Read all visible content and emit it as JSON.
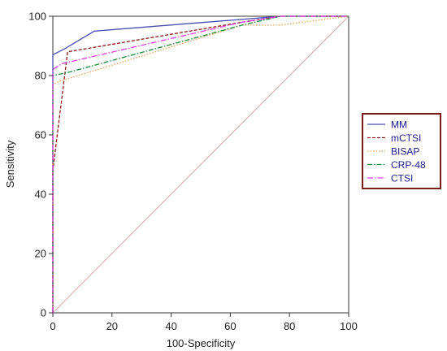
{
  "chart_data": {
    "type": "line",
    "xlabel": "100-Specificity",
    "ylabel": "Sensitivity",
    "xlim": [
      0,
      100
    ],
    "ylim": [
      0,
      100
    ],
    "xticks": [
      "0",
      "20",
      "40",
      "60",
      "80",
      "100"
    ],
    "yticks": [
      "0",
      "20",
      "40",
      "60",
      "80",
      "100"
    ],
    "legend_position": "right",
    "grid": false,
    "reference_line": {
      "x": [
        0,
        100
      ],
      "y": [
        0,
        100
      ],
      "color": "#d4a6a6"
    },
    "series": [
      {
        "name": "MM",
        "color": "#4a4fb0",
        "dash": "",
        "x": [
          0,
          0,
          4,
          14,
          77,
          100
        ],
        "y": [
          0,
          87,
          89,
          95,
          100,
          100
        ]
      },
      {
        "name": "mCTSI",
        "color": "#8b1a1a",
        "dash": "4,2",
        "x": [
          0,
          0,
          5,
          64,
          77,
          100
        ],
        "y": [
          0,
          48,
          88,
          98,
          100,
          100
        ]
      },
      {
        "name": "BISAP",
        "color": "#f0a050",
        "dash": "1.5,2",
        "x": [
          0,
          0,
          2,
          64,
          77,
          100
        ],
        "y": [
          0,
          77,
          78,
          97,
          97,
          100
        ]
      },
      {
        "name": "CRP-48",
        "color": "#1a8a3a",
        "dash": "6,2,1.5,2",
        "x": [
          0,
          0,
          5,
          64,
          77,
          100
        ],
        "y": [
          0,
          80,
          81,
          97,
          100,
          100
        ]
      },
      {
        "name": "CTSI",
        "color": "#e03ce0",
        "dash": "7,2,1.5,2",
        "x": [
          0,
          0,
          3,
          64,
          77,
          100
        ],
        "y": [
          0,
          82,
          84,
          98,
          100,
          100
        ]
      }
    ]
  }
}
